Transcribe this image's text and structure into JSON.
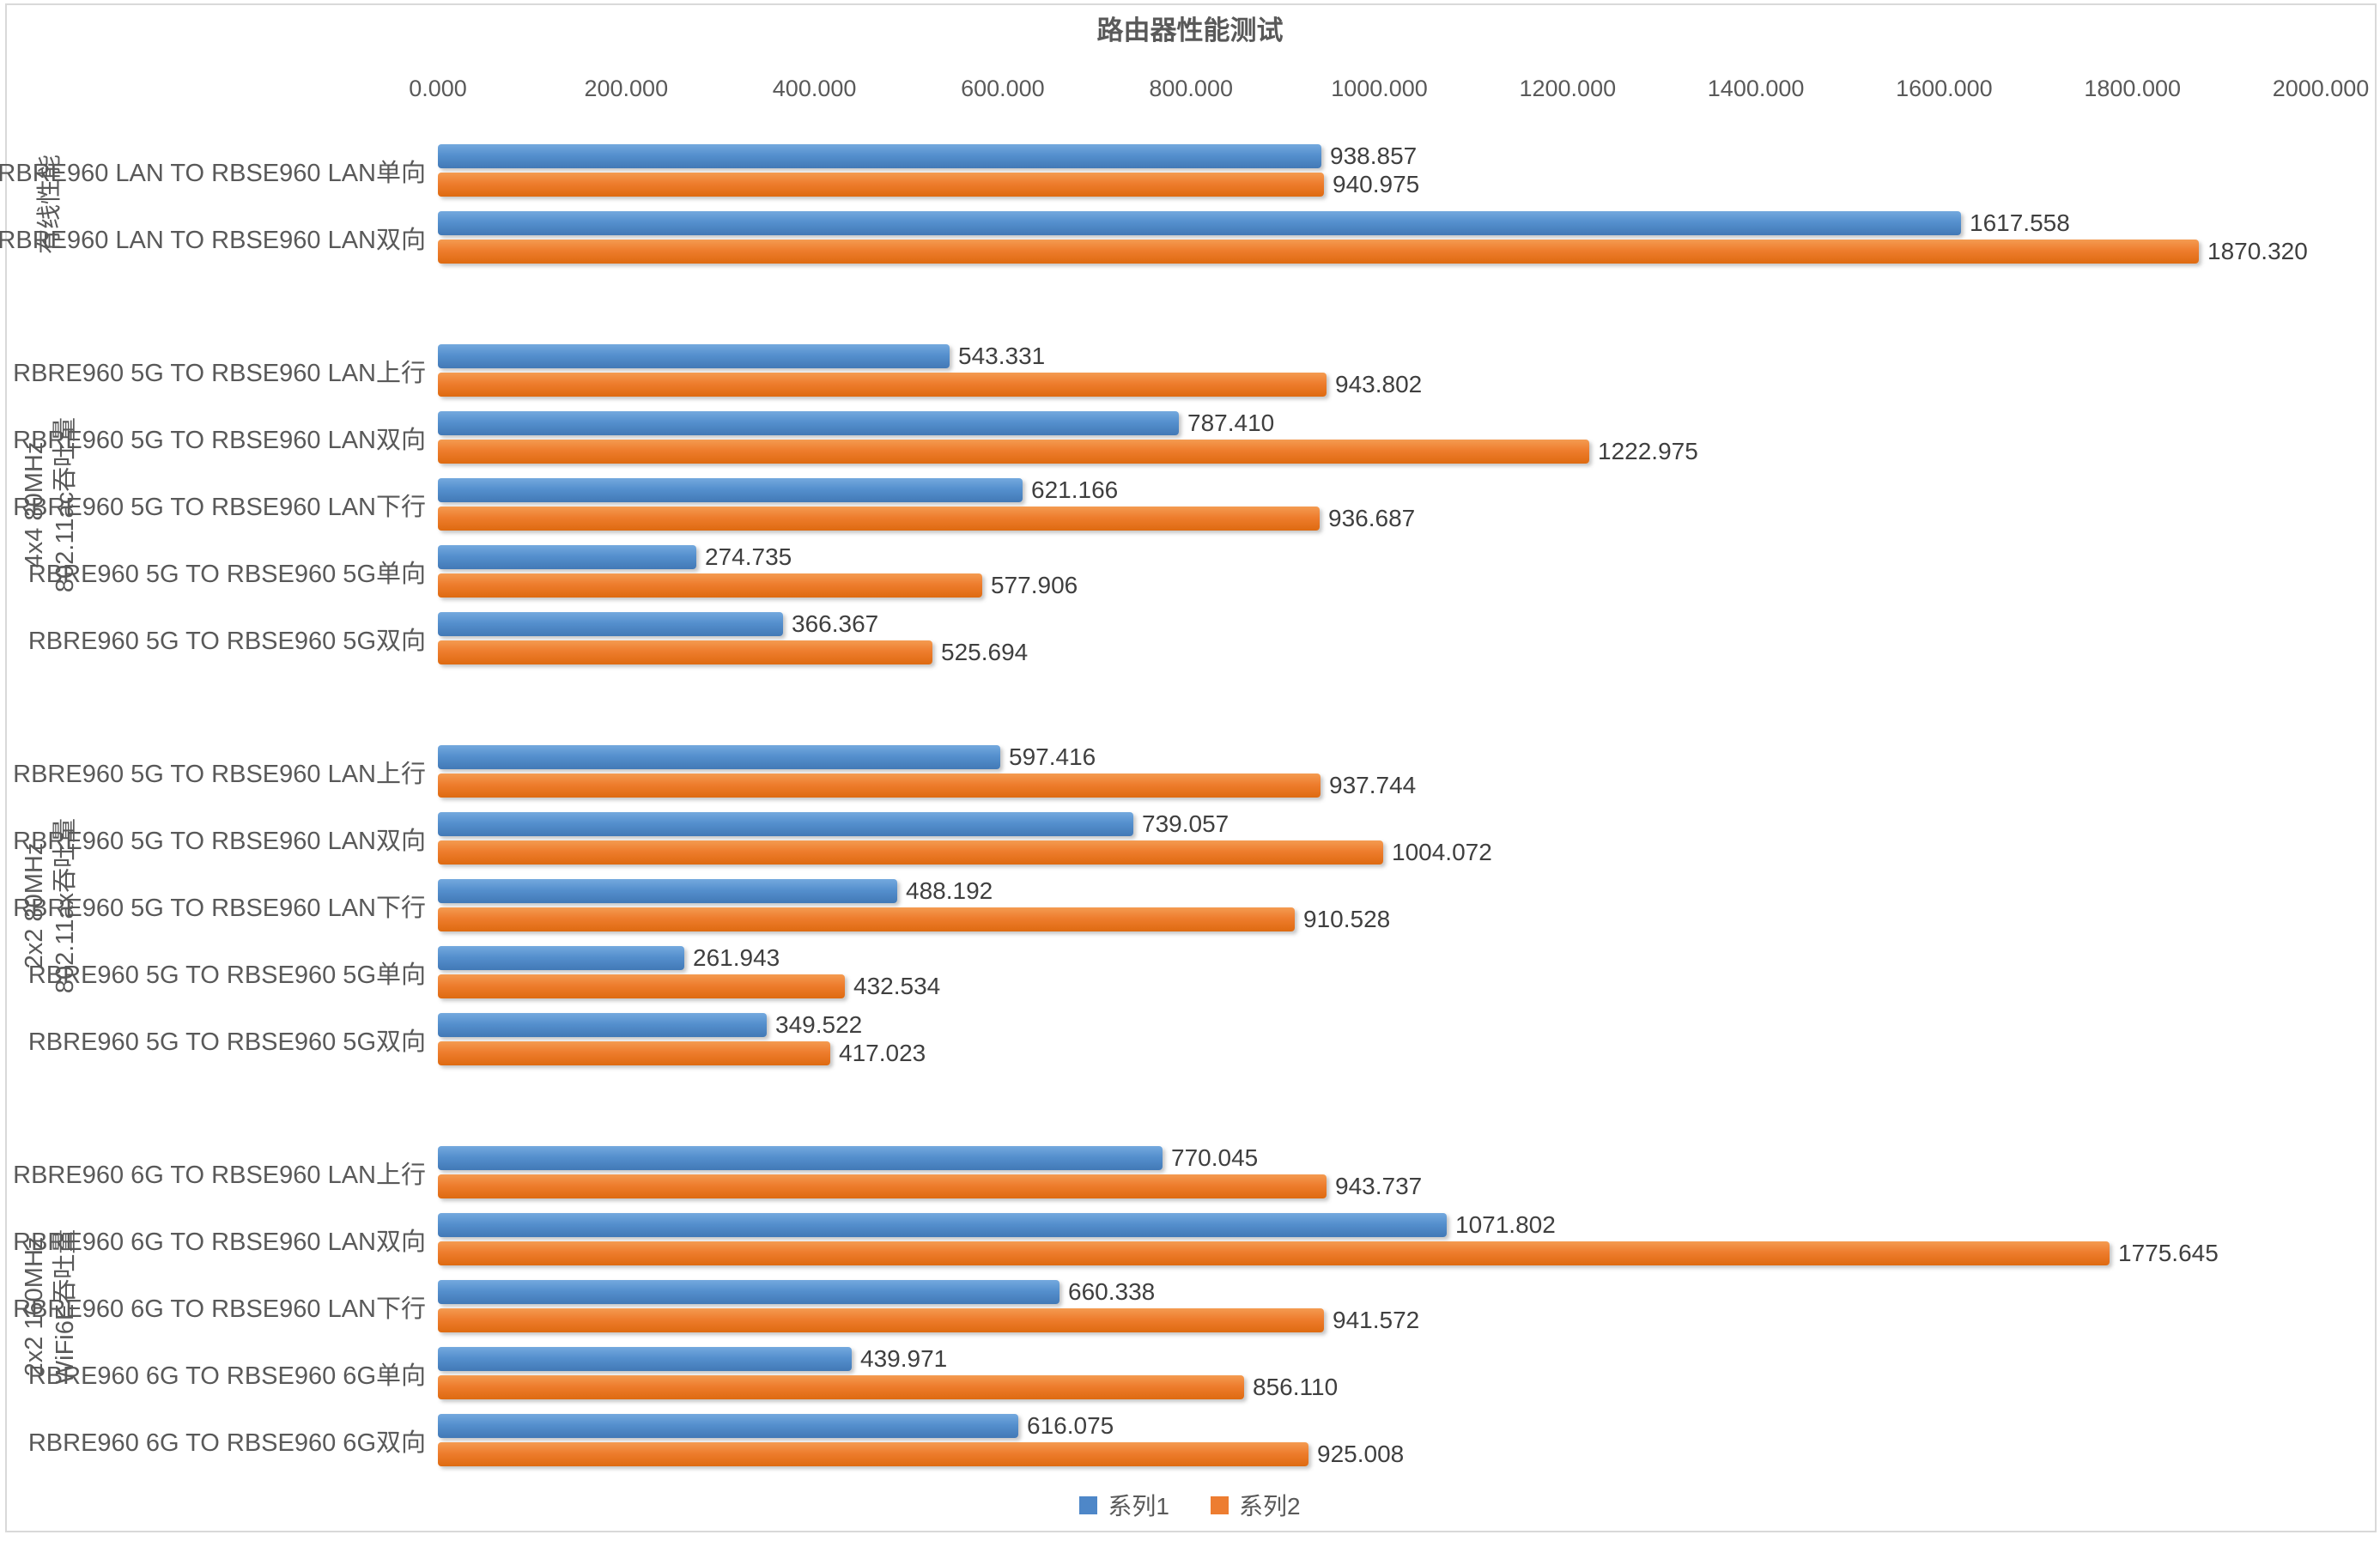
{
  "title": "路由器性能测试",
  "colors": {
    "series1": "#4E87C8",
    "series2": "#ED7D31",
    "title_text": "#595959",
    "axis_text": "#595959",
    "value_text": "#3F3F3F",
    "chart_border": "#D9D9D9"
  },
  "chart_data": {
    "type": "bar",
    "orientation": "horizontal",
    "title": "路由器性能测试",
    "xlabel": "",
    "ylabel": "",
    "xlim": [
      0,
      2000
    ],
    "tick_step": 200,
    "x_tick_labels": [
      "0.000",
      "200.000",
      "400.000",
      "600.000",
      "800.000",
      "1000.000",
      "1200.000",
      "1400.000",
      "1600.000",
      "1800.000",
      "2000.000"
    ],
    "grid": false,
    "legend_position": "bottom",
    "value_label_decimals": 3,
    "series_names": [
      "系列1",
      "系列2"
    ],
    "groups": [
      {
        "label_lines": [
          "有线性能"
        ],
        "rows": [
          {
            "category": "RBRE960 LAN TO RBSE960 LAN单向",
            "values": [
              938.857,
              940.975
            ]
          },
          {
            "category": "RBRE960 LAN TO RBSE960 LAN双向",
            "values": [
              1617.558,
              1870.32
            ]
          }
        ]
      },
      {
        "label_lines": [
          "4x4 80MHz",
          "802.11ac吞吐量"
        ],
        "rows": [
          {
            "category": "RBRE960 5G TO RBSE960 LAN上行",
            "values": [
              543.331,
              943.802
            ]
          },
          {
            "category": "RBRE960 5G TO RBSE960 LAN双向",
            "values": [
              787.41,
              1222.975
            ]
          },
          {
            "category": "RBRE960 5G  TO RBSE960 LAN下行",
            "values": [
              621.166,
              936.687
            ]
          },
          {
            "category": "RBRE960 5G  TO RBSE960 5G单向",
            "values": [
              274.735,
              577.906
            ]
          },
          {
            "category": "RBRE960 5G  TO RBSE960 5G双向",
            "values": [
              366.367,
              525.694
            ]
          }
        ]
      },
      {
        "label_lines": [
          "2x2 80MHz",
          "802.11ax吞吐量"
        ],
        "rows": [
          {
            "category": "RBRE960 5G  TO RBSE960 LAN上行",
            "values": [
              597.416,
              937.744
            ]
          },
          {
            "category": "RBRE960 5G  TO RBSE960 LAN双向",
            "values": [
              739.057,
              1004.072
            ]
          },
          {
            "category": "RBRE960 5G  TO RBSE960 LAN下行",
            "values": [
              488.192,
              910.528
            ]
          },
          {
            "category": "RBRE960 5G  TO RBSE960 5G单向",
            "values": [
              261.943,
              432.534
            ]
          },
          {
            "category": "RBRE960 5G  TO RBSE960 5G双向",
            "values": [
              349.522,
              417.023
            ]
          }
        ]
      },
      {
        "label_lines": [
          "2x2 160MHz",
          "WiFi6E吞吐量"
        ],
        "rows": [
          {
            "category": "RBRE960 6G  TO RBSE960 LAN上行",
            "values": [
              770.045,
              943.737
            ]
          },
          {
            "category": "RBRE960 6G  TO RBSE960 LAN双向",
            "values": [
              1071.802,
              1775.645
            ]
          },
          {
            "category": "RBRE960 6G  TO RBSE960 LAN下行",
            "values": [
              660.338,
              941.572
            ]
          },
          {
            "category": "RBRE960 6G  TO RBSE960 6G单向",
            "values": [
              439.971,
              856.11
            ]
          },
          {
            "category": "RBRE960 6G  TO RBSE960 6G双向",
            "values": [
              616.075,
              925.008
            ]
          }
        ]
      }
    ]
  },
  "legend": {
    "items": [
      {
        "label": "系列1"
      },
      {
        "label": "系列2"
      }
    ]
  }
}
